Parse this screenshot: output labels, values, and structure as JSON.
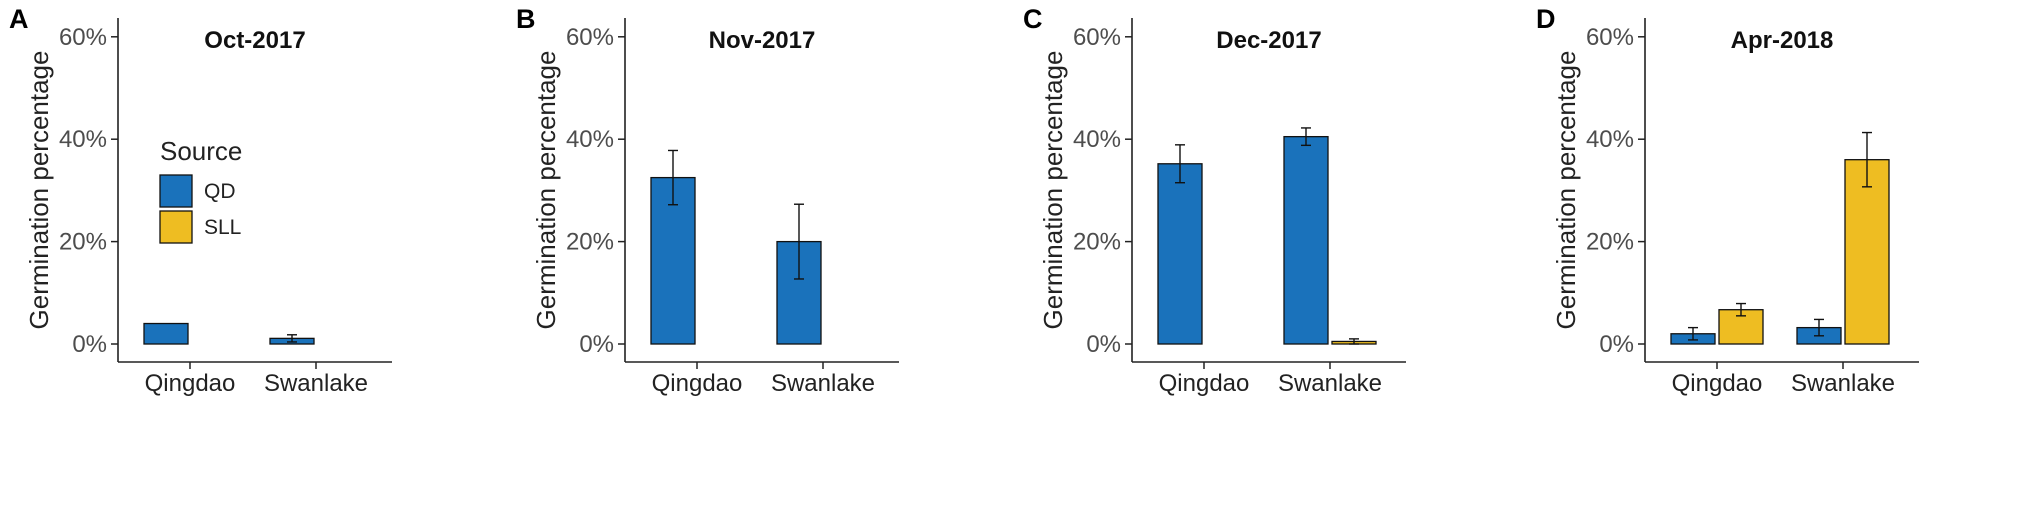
{
  "colors": {
    "QD": "#1a72bb",
    "SLL": "#eebd22",
    "axis": "#222222"
  },
  "legend": {
    "title": "Source",
    "items": [
      {
        "key": "QD",
        "label": "QD"
      },
      {
        "key": "SLL",
        "label": "SLL"
      }
    ]
  },
  "chart_data": [
    {
      "type": "bar",
      "panel": "A",
      "title": "Oct-2017",
      "ylabel": "Germination percentage",
      "ylim": [
        0,
        60
      ],
      "y_ticks": [
        "0%",
        "20%",
        "40%",
        "60%"
      ],
      "categories": [
        "Qingdao",
        "Swanlake"
      ],
      "show_legend": true,
      "series": [
        {
          "name": "QD",
          "values": [
            4.0,
            1.1
          ],
          "errors": [
            0,
            0.7
          ]
        },
        {
          "name": "SLL",
          "values": [
            0,
            0
          ],
          "errors": [
            0,
            0
          ]
        }
      ]
    },
    {
      "type": "bar",
      "panel": "B",
      "title": "Nov-2017",
      "ylabel": "Germination percentage",
      "ylim": [
        0,
        60
      ],
      "y_ticks": [
        "0%",
        "20%",
        "40%",
        "60%"
      ],
      "categories": [
        "Qingdao",
        "Swanlake"
      ],
      "show_legend": false,
      "series": [
        {
          "name": "QD",
          "values": [
            32.5,
            20.0
          ],
          "errors": [
            5.3,
            7.3
          ]
        },
        {
          "name": "SLL",
          "values": [
            0,
            0
          ],
          "errors": [
            0,
            0
          ]
        }
      ]
    },
    {
      "type": "bar",
      "panel": "C",
      "title": "Dec-2017",
      "ylabel": "Germination percentage",
      "ylim": [
        0,
        60
      ],
      "y_ticks": [
        "0%",
        "20%",
        "40%",
        "60%"
      ],
      "categories": [
        "Qingdao",
        "Swanlake"
      ],
      "show_legend": false,
      "series": [
        {
          "name": "QD",
          "values": [
            35.2,
            40.5
          ],
          "errors": [
            3.7,
            1.7
          ]
        },
        {
          "name": "SLL",
          "values": [
            0,
            0.5
          ],
          "errors": [
            0,
            0.5
          ]
        }
      ]
    },
    {
      "type": "bar",
      "panel": "D",
      "title": "Apr-2018",
      "ylabel": "Germination percentage",
      "ylim": [
        0,
        60
      ],
      "y_ticks": [
        "0%",
        "20%",
        "40%",
        "60%"
      ],
      "categories": [
        "Qingdao",
        "Swanlake"
      ],
      "show_legend": false,
      "series": [
        {
          "name": "QD",
          "values": [
            2.0,
            3.2
          ],
          "errors": [
            1.2,
            1.6
          ]
        },
        {
          "name": "SLL",
          "values": [
            6.7,
            36.0
          ],
          "errors": [
            1.2,
            5.3
          ]
        }
      ]
    }
  ]
}
